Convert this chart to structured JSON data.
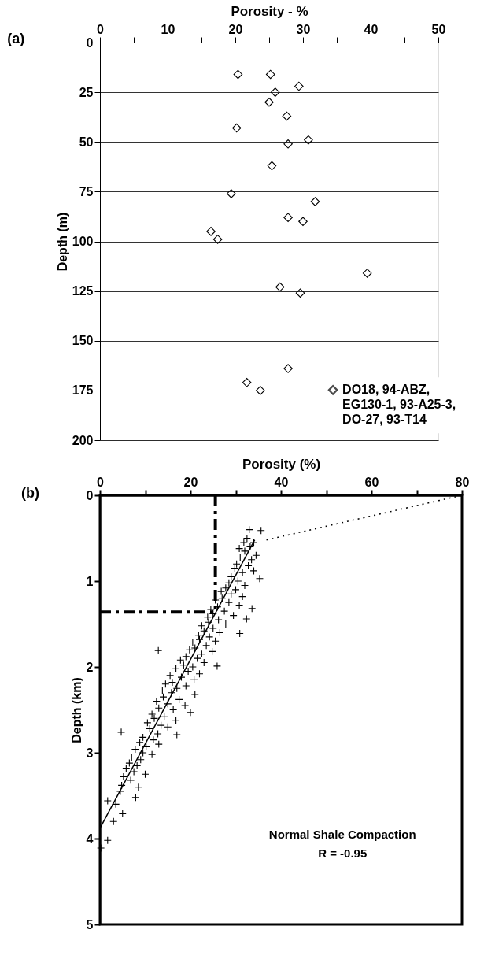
{
  "chart_data": [
    {
      "type": "scatter",
      "title": "(a)",
      "xlabel": "Porosity - %",
      "ylabel": "Depth (m)",
      "xlim": [
        0,
        50
      ],
      "ylim": [
        200,
        0
      ],
      "xticks": [
        0,
        {
          "value": 5,
          "label": null
        },
        10,
        {
          "value": 15,
          "label": null
        },
        20,
        {
          "value": 25,
          "label": null
        },
        30,
        {
          "value": 35,
          "label": null
        },
        40,
        {
          "value": 45,
          "label": null
        },
        50
      ],
      "yticks": [
        0,
        25,
        50,
        75,
        100,
        125,
        150,
        175,
        200
      ],
      "grid": "y",
      "marker": "diamond",
      "legend": "bottom right",
      "series": [
        {
          "name": "DO18, 94-ABZ, EG130-1, 93-A25-3, DO-27, 93-T14",
          "color": "#000000",
          "x": [
            20.4,
            25.2,
            29.4,
            25.9,
            25.0,
            27.6,
            20.2,
            30.8,
            27.8,
            25.4,
            19.4,
            31.8,
            27.8,
            30.0,
            16.4,
            17.4,
            39.5,
            26.6,
            29.6,
            27.8,
            21.7,
            23.7
          ],
          "values": [
            16,
            16,
            22,
            25,
            30,
            37,
            43,
            49,
            51,
            62,
            76,
            80,
            88,
            90,
            95,
            99,
            116,
            123,
            126,
            164,
            171,
            175
          ]
        }
      ]
    },
    {
      "type": "scatter",
      "title": "(b)",
      "xlabel": "Porosity   (%)",
      "ylabel": "Depth   (km)",
      "xlim": [
        0,
        80
      ],
      "ylim": [
        5,
        0
      ],
      "xticks": [
        0,
        {
          "value": 10,
          "label": null
        },
        20,
        {
          "value": 30,
          "label": null
        },
        40,
        {
          "value": 50,
          "label": null
        },
        60,
        {
          "value": 70,
          "label": null
        },
        80
      ],
      "yticks": [
        0,
        1,
        2,
        3,
        4,
        5
      ],
      "grid": false,
      "marker": "cross",
      "series": [
        {
          "color": "#000000",
          "x": [
            33.0,
            35.6,
            32.5,
            31.8,
            34.0,
            33.2,
            30.8,
            32.0,
            34.5,
            31.0,
            33.5,
            30.2,
            32.8,
            29.8,
            34.0,
            31.5,
            29.0,
            35.3,
            30.5,
            28.5,
            32.0,
            27.8,
            30.0,
            26.8,
            29.0,
            31.5,
            27.0,
            25.5,
            28.5,
            30.8,
            26.0,
            33.6,
            24.5,
            27.5,
            25.0,
            29.5,
            23.8,
            32.4,
            26.2,
            24.0,
            27.8,
            22.5,
            25.0,
            23.0,
            26.5,
            30.9,
            21.8,
            24.2,
            22.0,
            25.5,
            20.5,
            23.5,
            21.0,
            19.8,
            12.9,
            24.8,
            22.5,
            19.0,
            21.5,
            17.8,
            23.0,
            18.5,
            25.9,
            20.5,
            16.8,
            19.5,
            22.0,
            15.5,
            18.0,
            20.8,
            16.0,
            14.5,
            19.0,
            17.0,
            13.8,
            15.8,
            21.0,
            14.0,
            17.5,
            12.5,
            15.0,
            18.8,
            13.0,
            16.2,
            20.0,
            11.5,
            14.2,
            12.0,
            16.8,
            10.5,
            13.5,
            15.0,
            11.0,
            4.7,
            12.8,
            17.0,
            9.5,
            11.8,
            8.8,
            13.0,
            10.2,
            7.8,
            9.5,
            11.5,
            7.0,
            9.0,
            6.5,
            8.2,
            5.8,
            7.5,
            10.0,
            5.2,
            6.8,
            4.8,
            8.5,
            4.5,
            7.9,
            1.7,
            3.5,
            5.0,
            3.0,
            1.7,
            0.2
          ],
          "values": [
            0.4,
            0.41,
            0.5,
            0.55,
            0.55,
            0.6,
            0.62,
            0.65,
            0.7,
            0.72,
            0.75,
            0.8,
            0.82,
            0.85,
            0.88,
            0.9,
            0.95,
            0.97,
            1.0,
            1.02,
            1.05,
            1.08,
            1.1,
            1.12,
            1.15,
            1.18,
            1.2,
            1.22,
            1.25,
            1.28,
            1.3,
            1.32,
            1.33,
            1.35,
            1.38,
            1.4,
            1.42,
            1.44,
            1.45,
            1.48,
            1.5,
            1.52,
            1.55,
            1.58,
            1.6,
            1.61,
            1.63,
            1.65,
            1.68,
            1.7,
            1.72,
            1.75,
            1.78,
            1.8,
            1.81,
            1.82,
            1.85,
            1.88,
            1.9,
            1.92,
            1.95,
            1.98,
            1.99,
            2.0,
            2.02,
            2.05,
            2.08,
            2.1,
            2.12,
            2.15,
            2.18,
            2.2,
            2.22,
            2.25,
            2.28,
            2.3,
            2.32,
            2.35,
            2.38,
            2.4,
            2.43,
            2.45,
            2.48,
            2.5,
            2.53,
            2.55,
            2.58,
            2.6,
            2.62,
            2.65,
            2.68,
            2.7,
            2.72,
            2.76,
            2.78,
            2.79,
            2.82,
            2.85,
            2.88,
            2.9,
            2.93,
            2.96,
            3.0,
            3.02,
            3.05,
            3.08,
            3.12,
            3.15,
            3.18,
            3.22,
            3.25,
            3.28,
            3.32,
            3.38,
            3.4,
            3.45,
            3.52,
            3.56,
            3.6,
            3.71,
            3.8,
            4.02,
            4.11
          ]
        },
        {
          "type": "line",
          "color": "#000000",
          "line_style": "solid",
          "marker": "none",
          "x": [
            0,
            34.2
          ],
          "values": [
            3.88,
            0.52
          ]
        },
        {
          "type": "line",
          "color": "#000000",
          "line_style": "dotted",
          "marker": "none",
          "x": [
            36.8,
            80
          ],
          "values": [
            0.52,
            0
          ]
        }
      ],
      "ref_lines": [
        {
          "axis": "x",
          "value": 25.5,
          "color": "#000000",
          "line_style": "dashed"
        },
        {
          "axis": "y",
          "value": 1.36,
          "color": "#000000",
          "line_style": "dashed"
        }
      ],
      "annotations": [
        "Normal Shale Compaction",
        "R = -0.95"
      ]
    }
  ]
}
